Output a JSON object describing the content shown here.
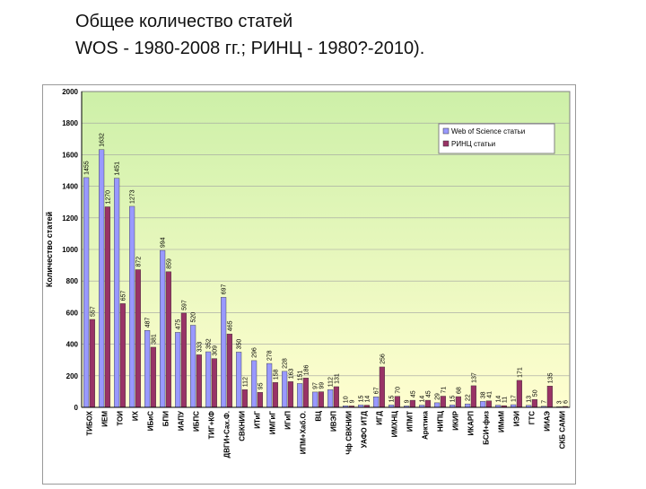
{
  "slide": {
    "title_line1": "Общее количество статей",
    "title_line2": "WOS - 1980-2008 гг.; РИНЦ - 1980?-2010)."
  },
  "chart_data": {
    "type": "bar",
    "ylabel": "Количество статей",
    "xlabel": "",
    "ylim": [
      0,
      2000
    ],
    "yticks": [
      0,
      200,
      400,
      600,
      800,
      1000,
      1200,
      1400,
      1600,
      1800,
      2000
    ],
    "grid": true,
    "legend_position": "top-right",
    "colors": {
      "wos": "#9999ff",
      "rinc": "#993366",
      "plot_top": "#cdf0a8",
      "plot_bottom": "#fffed0"
    },
    "categories": [
      "ТИБОХ",
      "ИЕМ",
      "ТОИ",
      "ИХ",
      "ИБиС",
      "БПИ",
      "ИАПУ",
      "ИБПС",
      "ТИГ+КФ",
      "ДВГИ+Сах.Ф.",
      "СВКНИИ",
      "ИТиГ",
      "ИМГиГ",
      "ИГиП",
      "ИПМ+Хаб.О.",
      "ВЦ",
      "ИВЭП",
      "Чф СВКНИИ",
      "УАФО ИТД",
      "ИГД",
      "ИМХНЦ",
      "ИПМТ",
      "Арктика",
      "НИПЦ",
      "ИКИР",
      "ИКАРП",
      "БСИ+физ",
      "ИМиМ",
      "ИЭИ",
      "ГТС",
      "ИИАЭ",
      "СКБ САМИ"
    ],
    "series": [
      {
        "name": "Web of Science статьи",
        "values": [
          1455,
          1632,
          1451,
          1273,
          487,
          994,
          475,
          520,
          352,
          697,
          350,
          296,
          278,
          228,
          151,
          97,
          112,
          10,
          15,
          67,
          15,
          9,
          14,
          29,
          15,
          22,
          38,
          14,
          17,
          13,
          7,
          3
        ]
      },
      {
        "name": "РИНЦ статьи",
        "values": [
          557,
          1270,
          657,
          872,
          381,
          859,
          597,
          333,
          309,
          465,
          112,
          95,
          158,
          163,
          186,
          99,
          131,
          9,
          14,
          256,
          70,
          45,
          45,
          71,
          68,
          137,
          41,
          11,
          171,
          50,
          135,
          6
        ]
      }
    ],
    "value_labels": {
      "wos": [
        "1455",
        "1632",
        "1451",
        "1273",
        "487",
        "994",
        "475",
        "520",
        "352",
        "697",
        "350",
        "296",
        "278",
        "228",
        "151",
        "97",
        "112",
        "10",
        "15",
        "67",
        "15",
        "9",
        "14",
        "29",
        "15",
        "22",
        "38",
        "14",
        "17",
        "13",
        "7",
        "3"
      ],
      "rinc": [
        "557",
        "1270",
        "657",
        "872",
        "381",
        "859",
        "597",
        "333",
        "309",
        "465",
        "112",
        "95",
        "158",
        "163",
        "186",
        "99",
        "131",
        "9",
        "14",
        "256",
        "70",
        "45",
        "45",
        "71",
        "68",
        "137",
        "41",
        "11",
        "171",
        "50",
        "135",
        "6"
      ]
    }
  }
}
